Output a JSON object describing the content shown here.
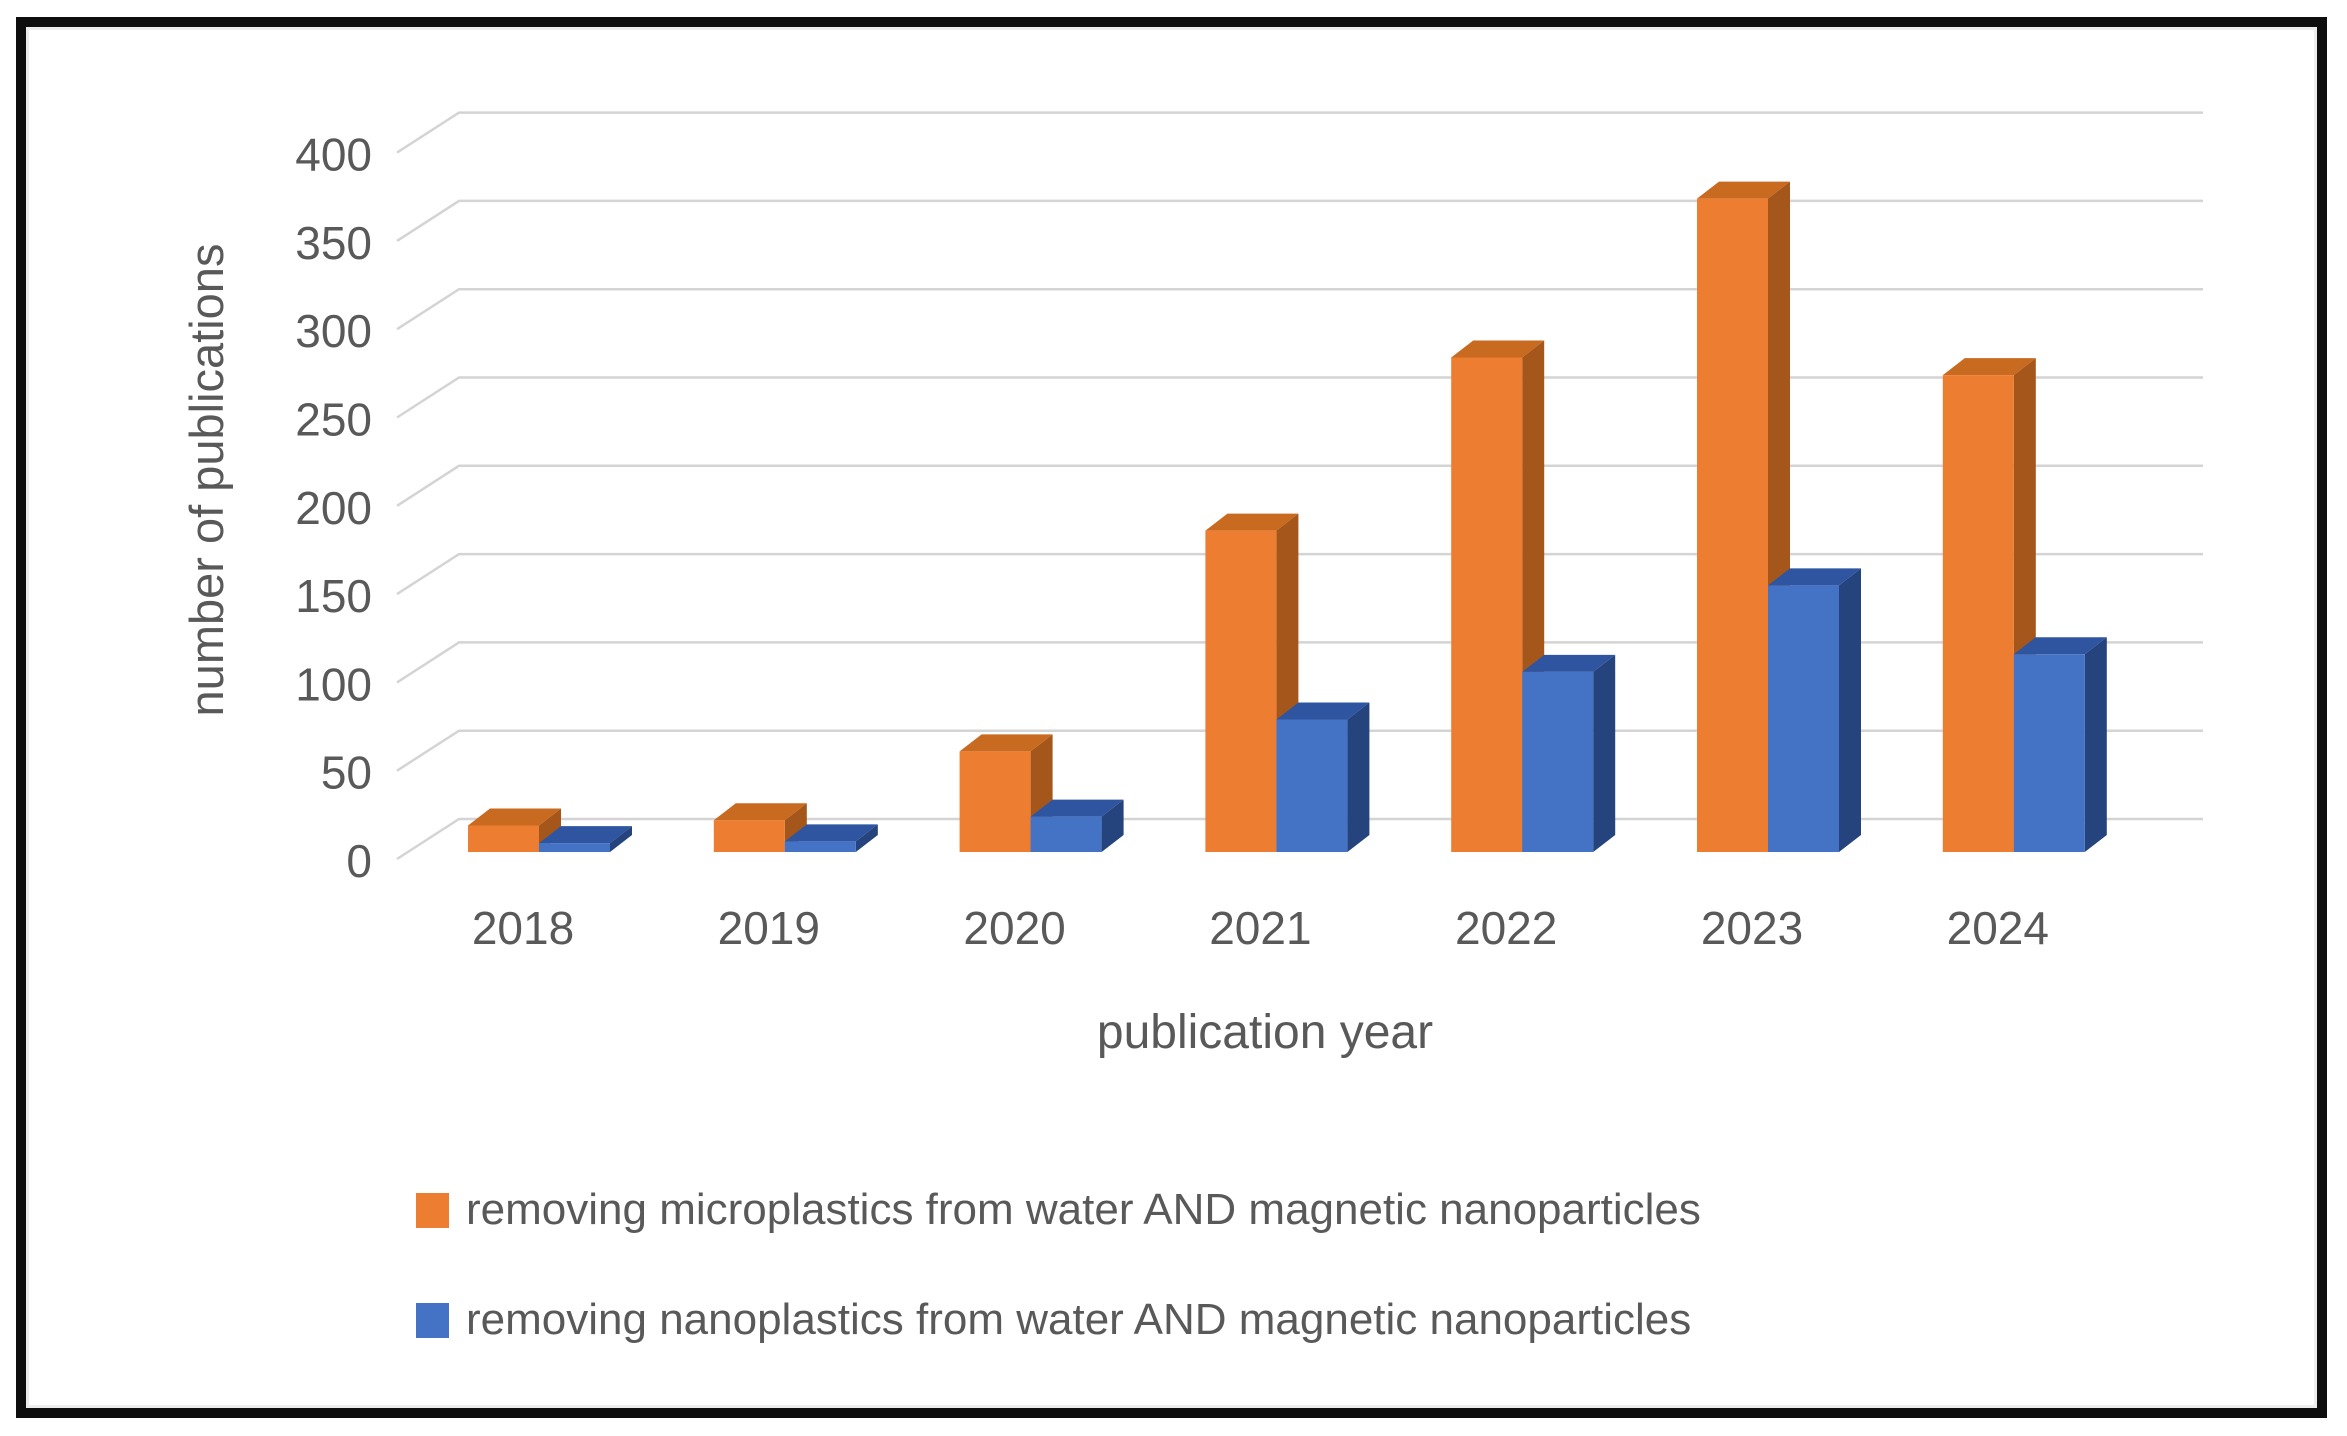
{
  "figure": {
    "kind": "3d-clustered-bar-chart-screenshot",
    "border_color": "#0e0e0e",
    "background": "#ffffff",
    "text_color": "#595959",
    "gridline_color": "#d4d4d4"
  },
  "chart_data": {
    "type": "bar",
    "style": "3d-clustered",
    "title": "",
    "xlabel": "publication year",
    "ylabel": "number of publications",
    "categories": [
      "2018",
      "2019",
      "2020",
      "2021",
      "2022",
      "2023",
      "2024"
    ],
    "series": [
      {
        "name": "removing microplastics from water AND magnetic nanoparticles",
        "color": "#ED7D31",
        "color_top": "#C86A20",
        "color_side": "#A5561A",
        "values": [
          15,
          18,
          57,
          182,
          280,
          370,
          270
        ]
      },
      {
        "name": "removing nanoplastics from water AND magnetic nanoparticles",
        "color": "#4472C4",
        "color_top": "#2F55A0",
        "color_side": "#25437C",
        "values": [
          5,
          6,
          20,
          75,
          102,
          151,
          112
        ]
      }
    ],
    "ylim": [
      0,
      400
    ],
    "ytick_step": 50,
    "yticks": [
      "0",
      "50",
      "100",
      "150",
      "200",
      "250",
      "300",
      "350",
      "400"
    ],
    "grid": true,
    "legend_position": "bottom-left"
  }
}
